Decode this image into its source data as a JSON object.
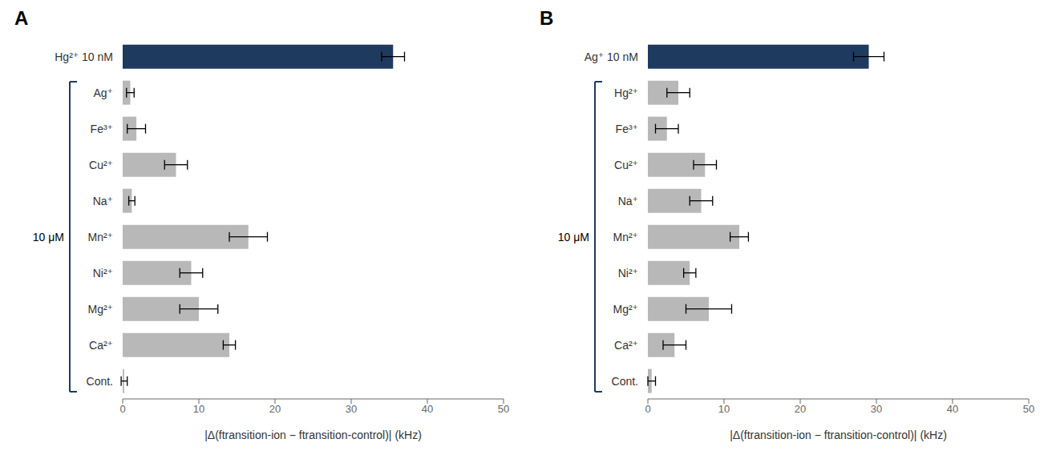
{
  "chart_data": [
    {
      "type": "bar",
      "orientation": "horizontal",
      "title": "A",
      "categories": [
        "Hg²⁺ 10 nM",
        "Ag⁺",
        "Fe³⁺",
        "Cu²⁺",
        "Na⁺",
        "Mn²⁺",
        "Ni²⁺",
        "Mg²⁺",
        "Ca²⁺",
        "Cont."
      ],
      "values": [
        35.5,
        1.0,
        1.8,
        7.0,
        1.2,
        16.5,
        9.0,
        10.0,
        14.0,
        0.2
      ],
      "errors": [
        1.5,
        0.5,
        1.2,
        1.5,
        0.4,
        2.5,
        1.5,
        2.5,
        0.8,
        0.4
      ],
      "colors": [
        "#1e3a5f",
        "#b8b8b8",
        "#b8b8b8",
        "#b8b8b8",
        "#b8b8b8",
        "#b8b8b8",
        "#b8b8b8",
        "#b8b8b8",
        "#b8b8b8",
        "#b8b8b8"
      ],
      "x_label": "|Δ(ftransition-ion − ftransition-control)| (kHz)",
      "xlim": [
        0,
        50
      ],
      "xticks": [
        0,
        10,
        20,
        30,
        40,
        50
      ],
      "grid": false,
      "annotations": [
        {
          "text": "10 μM",
          "from": "Ag⁺",
          "to": "Cont.",
          "color": "#1e3a5f"
        }
      ]
    },
    {
      "type": "bar",
      "orientation": "horizontal",
      "title": "B",
      "categories": [
        "Ag⁺ 10 nM",
        "Hg²⁺",
        "Fe³⁺",
        "Cu²⁺",
        "Na⁺",
        "Mn²⁺",
        "Ni²⁺",
        "Mg²⁺",
        "Ca²⁺",
        "Cont."
      ],
      "values": [
        29.0,
        4.0,
        2.5,
        7.5,
        7.0,
        12.0,
        5.5,
        8.0,
        3.5,
        0.5
      ],
      "errors": [
        2.0,
        1.5,
        1.5,
        1.5,
        1.5,
        1.2,
        0.8,
        3.0,
        1.5,
        0.5
      ],
      "colors": [
        "#1e3a5f",
        "#b8b8b8",
        "#b8b8b8",
        "#b8b8b8",
        "#b8b8b8",
        "#b8b8b8",
        "#b8b8b8",
        "#b8b8b8",
        "#b8b8b8",
        "#b8b8b8"
      ],
      "x_label": "|Δ(ftransition-ion − ftransition-control)| (kHz)",
      "xlim": [
        0,
        50
      ],
      "xticks": [
        0,
        10,
        20,
        30,
        40,
        50
      ],
      "grid": false,
      "annotations": [
        {
          "text": "10 μM",
          "from": "Hg²⁺",
          "to": "Cont.",
          "color": "#1e3a5f"
        }
      ]
    }
  ]
}
